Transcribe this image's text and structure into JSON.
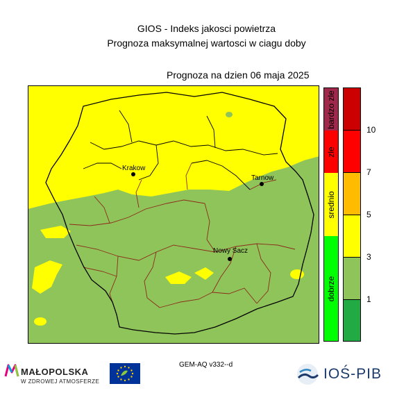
{
  "header": {
    "title": "GIOS - Indeks jakosci powietrza",
    "subtitle": "Prognoza maksymalnej wartosci w ciagu doby",
    "forecast_date": "Prognoza na dzien  06 maja 2025"
  },
  "map": {
    "cities": [
      {
        "name": "Krakow"
      },
      {
        "name": "Tarnow"
      },
      {
        "name": "Nowy Sacz"
      }
    ],
    "colors": {
      "dobrze": "#8fc45a",
      "srednio": "#ffff00",
      "boundary_outer": "#000000",
      "boundary_inner": "#8b2a1a"
    }
  },
  "legend": {
    "categories": [
      {
        "label": "bardzo zle",
        "color": "#a0284a"
      },
      {
        "label": "zle",
        "color": "#ff0000"
      },
      {
        "label": "srednio",
        "color": "#ffff00"
      },
      {
        "label": "dobrze",
        "color": "#00ff00"
      }
    ],
    "scale": [
      {
        "color": "#cc0000"
      },
      {
        "color": "#ff0000"
      },
      {
        "color": "#ffbb00"
      },
      {
        "color": "#ffff00"
      },
      {
        "color": "#8fc45a"
      },
      {
        "color": "#22aa44"
      }
    ],
    "scale_labels": [
      "10",
      "7",
      "5",
      "3",
      "1"
    ]
  },
  "footer": {
    "model_version": "GEM-AQ v332--d",
    "malopolska_name": "MAŁOPOLSKA",
    "malopolska_tagline": "W ZDROWEJ ATMOSFERZE",
    "ios_name": "IOŚ-PIB"
  }
}
